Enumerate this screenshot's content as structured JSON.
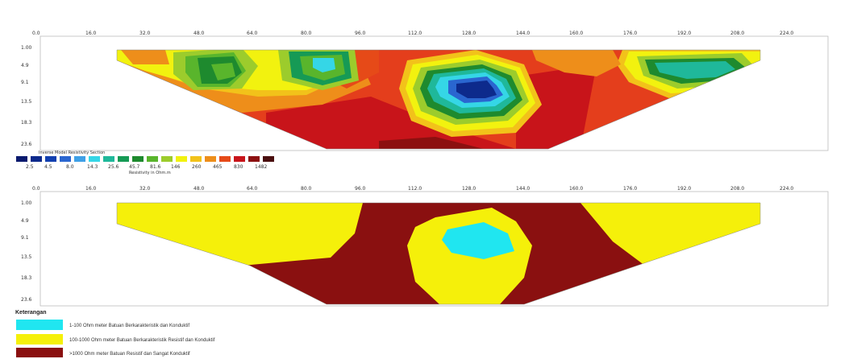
{
  "colors": {
    "scale": [
      "#0a1a6e",
      "#0d2a8c",
      "#1240b0",
      "#2a66d0",
      "#3fa0e6",
      "#35d6e6",
      "#1fb89a",
      "#169a55",
      "#1e8a2e",
      "#59b52c",
      "#9ccc2c",
      "#f2f20f",
      "#f2c21a",
      "#ee8e1a",
      "#e64a18",
      "#c8141a",
      "#8c1010",
      "#4a0f0f"
    ],
    "lens_dark": "#6a1c1c",
    "model_bg": "#e43e1c",
    "legend": [
      "#20e6f0",
      "#f5f00a",
      "#8a1010"
    ]
  },
  "top_plot": {
    "x_ticks": [
      "0.0",
      "16.0",
      "32.0",
      "48.0",
      "64.0",
      "80.0",
      "96.0",
      "112.0",
      "128.0",
      "144.0",
      "160.0",
      "176.0",
      "192.0",
      "208.0",
      "224.0"
    ],
    "y_ticks": [
      "1.00",
      "4.9",
      "9.1",
      "13.5",
      "18.3",
      "23.6"
    ]
  },
  "scale_bar": {
    "title": "Inverse Model Resistivity Section",
    "values": [
      "2.5",
      "4.5",
      "8.0",
      "14.3",
      "25.6",
      "45.7",
      "81.6",
      "146",
      "260",
      "465",
      "830",
      "1482"
    ],
    "unit": "Resistivity in Ohm.m"
  },
  "bottom_plot": {
    "x_ticks": [
      "0.0",
      "16.0",
      "32.0",
      "48.0",
      "64.0",
      "80.0",
      "96.0",
      "112.0",
      "128.0",
      "144.0",
      "160.0",
      "176.0",
      "192.0",
      "208.0",
      "224.0"
    ],
    "y_ticks": [
      "1.00",
      "4.9",
      "9.1",
      "13.5",
      "18.3",
      "23.6"
    ]
  },
  "legend": {
    "title": "Keterangan",
    "items": [
      "1-100 Ohm meter Batuan Berkarakteristik dan Konduktif",
      "100-1000 Ohm meter Batuan Berkarakteristik Resistif dan Konduktif",
      ">1000 Ohm meter Batuan Resistif dan Sangat Konduktif"
    ]
  }
}
